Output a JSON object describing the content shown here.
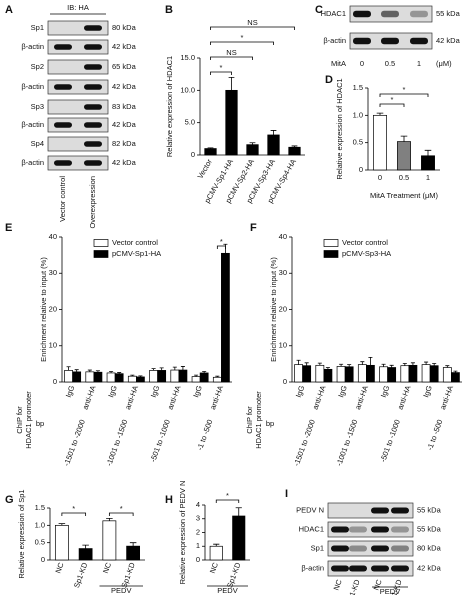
{
  "chart_data": [
    {
      "type": "bar",
      "panel": "B",
      "ylabel": "Relative expression of HDAC1",
      "categories": [
        "Vector",
        "pCMV-Sp1-HA",
        "pCMV-Sp2-HA",
        "pCMV-Sp3-HA",
        "pCMV-Sp4-HA"
      ],
      "values": [
        1.0,
        10.0,
        1.6,
        3.1,
        1.2
      ],
      "errors": [
        0.1,
        2.0,
        0.3,
        0.7,
        0.2
      ],
      "color": "#000000",
      "ylim": [
        0,
        15
      ],
      "yticks": [
        0,
        {
          "value": 5,
          "label": "5.0"
        },
        {
          "value": 10,
          "label": "10.0"
        },
        {
          "value": 15,
          "label": "15.0"
        }
      ],
      "significance": [
        {
          "from": 0,
          "to": 1,
          "label": "*"
        },
        {
          "from": 0,
          "to": 2,
          "label": "NS"
        },
        {
          "from": 0,
          "to": 3,
          "label": "*"
        },
        {
          "from": 0,
          "to": 4,
          "label": "NS"
        }
      ]
    },
    {
      "type": "bar",
      "panel": "D",
      "ylabel": "Relative expression of HDAC1",
      "xlabel": "MitA Treatment (μM)",
      "categories": [
        "0",
        "0.5",
        "1"
      ],
      "values": [
        1.0,
        0.52,
        0.26
      ],
      "errors": [
        0.04,
        0.1,
        0.1
      ],
      "colors": [
        "#ffffff",
        "#808080",
        "#000000"
      ],
      "ylim": [
        0,
        1.5
      ],
      "yticks": [
        0,
        0.5,
        {
          "value": 1,
          "label": "1.0"
        },
        1.5
      ],
      "significance": [
        {
          "from": 0,
          "to": 1,
          "label": "*"
        },
        {
          "from": 0,
          "to": 2,
          "label": "*"
        }
      ]
    },
    {
      "type": "bar",
      "panel": "E",
      "ylabel": "Enrichment relative to input (%)",
      "side_label": [
        "ChIP for",
        "HDAC1 promoter"
      ],
      "categories": [
        "IgG",
        "anti-HA",
        "IgG",
        "anti-HA",
        "IgG",
        "anti-HA",
        "IgG",
        "anti-HA"
      ],
      "regions": [
        "-1501 to -2000",
        "-1001 to -1500",
        "-501 to -1000",
        "-1 to -500"
      ],
      "bp": "bp",
      "series": [
        {
          "name": "Vector control",
          "color": "#ffffff",
          "values": [
            3.2,
            2.8,
            2.5,
            1.6,
            3.2,
            3.3,
            1.5,
            1.3
          ],
          "errors": [
            1.0,
            0.5,
            0.4,
            0.3,
            0.5,
            0.8,
            0.4,
            0.3
          ]
        },
        {
          "name": "pCMV-Sp1-HA",
          "color": "#000000",
          "values": [
            2.8,
            2.7,
            2.3,
            1.4,
            3.2,
            3.3,
            2.5,
            35.5
          ],
          "errors": [
            0.6,
            0.4,
            0.3,
            0.3,
            0.7,
            1.0,
            0.4,
            2.5
          ]
        }
      ],
      "ylim": [
        0,
        40
      ],
      "yticks": [
        0,
        10,
        20,
        30,
        40
      ],
      "significance": [
        {
          "from": 7,
          "to": 7,
          "label": "*"
        }
      ]
    },
    {
      "type": "bar",
      "panel": "F",
      "ylabel": "Enrichment relative to input (%)",
      "side_label": [
        "ChIP for",
        "HDAC1 promoter"
      ],
      "categories": [
        "IgG",
        "anti-HA",
        "IgG",
        "anti-HA",
        "IgG",
        "anti-HA",
        "IgG",
        "anti-HA"
      ],
      "regions": [
        "-1501 to -2000",
        "-1001 to -1500",
        "-501 to -1000",
        "-1 to -500"
      ],
      "bp": "bp",
      "series": [
        {
          "name": "Vector control",
          "color": "#ffffff",
          "values": [
            4.8,
            4.6,
            4.3,
            4.8,
            4.2,
            4.5,
            4.8,
            4.0
          ],
          "errors": [
            1.2,
            0.6,
            0.6,
            0.8,
            0.7,
            0.6,
            0.7,
            0.5
          ]
        },
        {
          "name": "pCMV-Sp3-HA",
          "color": "#000000",
          "values": [
            4.5,
            3.5,
            4.2,
            4.6,
            4.0,
            4.6,
            4.5,
            2.6
          ],
          "errors": [
            0.8,
            0.5,
            0.6,
            2.2,
            0.6,
            0.7,
            0.6,
            0.4
          ]
        }
      ],
      "ylim": [
        0,
        40
      ],
      "yticks": [
        0,
        10,
        20,
        30,
        40
      ]
    },
    {
      "type": "bar",
      "panel": "G",
      "ylabel": "Relative expression of Sp1",
      "categories": [
        "NC",
        "Sp1-KD",
        "NC",
        "Sp1-KD"
      ],
      "values": [
        1.0,
        0.33,
        1.13,
        0.4
      ],
      "errors": [
        0.05,
        0.1,
        0.07,
        0.1
      ],
      "colors": [
        "#ffffff",
        "#000000",
        "#ffffff",
        "#000000"
      ],
      "ylim": [
        0,
        1.5
      ],
      "yticks": [
        0,
        0.5,
        {
          "value": 1,
          "label": "1.0"
        },
        1.5
      ],
      "significance": [
        {
          "from": 0,
          "to": 1,
          "label": "*"
        },
        {
          "from": 2,
          "to": 3,
          "label": "*"
        }
      ],
      "group": {
        "label": "PEDV",
        "from": 2,
        "to": 3
      }
    },
    {
      "type": "bar",
      "panel": "H",
      "ylabel": "Relative expression of PEDV N",
      "categories": [
        "NC",
        "Sp1-KD"
      ],
      "values": [
        1.0,
        3.2
      ],
      "errors": [
        0.15,
        0.6
      ],
      "colors": [
        "#ffffff",
        "#000000"
      ],
      "ylim": [
        0,
        4
      ],
      "yticks": [
        0,
        1,
        2,
        3,
        4
      ],
      "significance": [
        {
          "from": 0,
          "to": 1,
          "label": "*"
        }
      ],
      "group": {
        "label": "PEDV",
        "from": 0,
        "to": 1
      }
    }
  ],
  "blots": [
    {
      "panel": "A",
      "header": "IB: HA",
      "lanes": [
        "Vector control",
        "Overexpression"
      ],
      "rows": [
        {
          "label": "Sp1",
          "kda": "80 kDa"
        },
        {
          "label": "β-actin",
          "kda": "42 kDa"
        },
        {
          "label": "Sp2",
          "kda": "65 kDa"
        },
        {
          "label": "β-actin",
          "kda": "42 kDa"
        },
        {
          "label": "Sp3",
          "kda": "83 kDa"
        },
        {
          "label": "β-actin",
          "kda": "42 kDa"
        },
        {
          "label": "Sp4",
          "kda": "82 kDa"
        },
        {
          "label": "β-actin",
          "kda": "42 kDa"
        }
      ]
    },
    {
      "panel": "C",
      "lanes": [
        "0",
        "0.5",
        "1"
      ],
      "lane_title": "MitA",
      "lane_unit": "(μM)",
      "rows": [
        {
          "label": "HDAC1",
          "kda": "55 kDa"
        },
        {
          "label": "β-actin",
          "kda": "42 kDa"
        }
      ]
    },
    {
      "panel": "I",
      "lanes": [
        "NC",
        "Sp1-KD",
        "NC",
        "Sp1-KD"
      ],
      "group": "PEDV",
      "rows": [
        {
          "label": "PEDV N",
          "kda": "55 kDa"
        },
        {
          "label": "HDAC1",
          "kda": "55 kDa"
        },
        {
          "label": "Sp1",
          "kda": "80 kDa"
        },
        {
          "label": "β-actin",
          "kda": "42 kDa"
        }
      ]
    }
  ]
}
